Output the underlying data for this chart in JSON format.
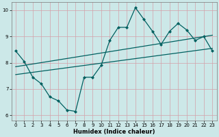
{
  "xlabel": "Humidex (Indice chaleur)",
  "bg_color": "#cce8e8",
  "grid_color": "#d4a0a8",
  "line_color": "#006060",
  "xlim": [
    -0.5,
    23.5
  ],
  "ylim": [
    5.8,
    10.3
  ],
  "xticks": [
    0,
    1,
    2,
    3,
    4,
    5,
    6,
    7,
    8,
    9,
    10,
    11,
    12,
    13,
    14,
    15,
    16,
    17,
    18,
    19,
    20,
    21,
    22,
    23
  ],
  "yticks": [
    6,
    7,
    8,
    9,
    10
  ],
  "data_line_x": [
    0,
    1,
    2,
    3,
    4,
    5,
    6,
    7,
    8,
    9,
    10,
    11,
    12,
    13,
    14,
    15,
    16,
    17,
    18,
    19,
    20,
    21,
    22,
    23
  ],
  "data_line_y": [
    8.45,
    8.05,
    7.45,
    7.2,
    6.7,
    6.55,
    6.2,
    6.15,
    7.45,
    7.45,
    7.9,
    8.85,
    9.35,
    9.35,
    10.1,
    9.65,
    9.2,
    8.7,
    9.2,
    9.5,
    9.25,
    8.85,
    9.0,
    8.45
  ],
  "trend1_x": [
    0,
    23
  ],
  "trend1_y": [
    7.55,
    8.55
  ],
  "trend2_x": [
    0,
    23
  ],
  "trend2_y": [
    7.85,
    9.05
  ],
  "line_width": 0.9,
  "marker_size": 2.5,
  "tick_fontsize": 5,
  "xlabel_fontsize": 6
}
